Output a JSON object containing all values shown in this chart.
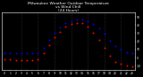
{
  "title": "Milwaukee Weather Outdoor Temperature\nvs Wind Chill\n(24 Hours)",
  "title_fontsize": 3.2,
  "background_color": "#000000",
  "plot_bg_color": "#000000",
  "grid_color": "#555555",
  "hours": [
    0,
    1,
    2,
    3,
    4,
    5,
    6,
    7,
    8,
    9,
    10,
    11,
    12,
    13,
    14,
    15,
    16,
    17,
    18,
    19,
    20,
    21,
    22,
    23
  ],
  "temp": [
    5,
    5,
    5,
    5,
    5,
    5,
    6,
    12,
    22,
    31,
    37,
    42,
    45,
    47,
    47,
    45,
    41,
    36,
    29,
    21,
    14,
    10,
    7,
    5
  ],
  "windchill": [
    -2,
    -2,
    -3,
    -3,
    -3,
    -3,
    -2,
    5,
    15,
    25,
    32,
    38,
    41,
    43,
    43,
    38,
    30,
    22,
    12,
    2,
    -5,
    -8,
    -10,
    -11
  ],
  "temp_color": "#0000ff",
  "windchill_color": "#ff0000",
  "dot_size": 2.0,
  "ylim": [
    -15,
    55
  ],
  "xlim": [
    -0.5,
    23.5
  ],
  "tick_fontsize": 2.2,
  "tick_color": "#ffffff",
  "title_color": "#ffffff",
  "spine_color": "#ffffff",
  "yticks": [
    -10,
    0,
    10,
    20,
    30,
    40,
    50
  ],
  "xticks": [
    0,
    1,
    2,
    3,
    4,
    5,
    6,
    7,
    8,
    9,
    10,
    11,
    12,
    13,
    14,
    15,
    16,
    17,
    18,
    19,
    20,
    21,
    22,
    23
  ],
  "xtick_labels": [
    "0",
    "1",
    "2",
    "3",
    "4",
    "5",
    "6",
    "7",
    "8",
    "9",
    "10",
    "11",
    "12",
    "13",
    "14",
    "15",
    "16",
    "17",
    "18",
    "19",
    "20",
    "21",
    "22",
    "23"
  ],
  "vgrid_positions": [
    3,
    6,
    9,
    12,
    15,
    18,
    21
  ]
}
